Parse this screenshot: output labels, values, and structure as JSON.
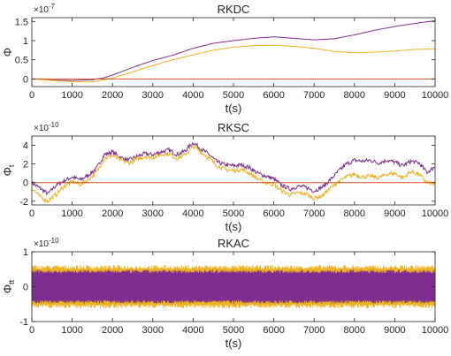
{
  "chart_data": [
    {
      "type": "line",
      "title": "RKDC",
      "xlabel": "t(s)",
      "ylabel": "Φ",
      "exponent_base": "×10",
      "exponent_power": "-7",
      "xlim": [
        0,
        10000
      ],
      "ylim": [
        -0.2,
        1.6
      ],
      "xticks": [
        0,
        1000,
        2000,
        3000,
        4000,
        5000,
        6000,
        7000,
        8000,
        9000,
        10000
      ],
      "yticks": [
        0,
        0.5,
        1,
        1.5
      ],
      "ytick_labels": [
        "0",
        "0.5",
        "1",
        "1.5"
      ],
      "grid": false,
      "colors": [
        "#7e2f8e",
        "#edb120",
        "#d95319"
      ],
      "series": [
        {
          "x": [
            0,
            500,
            1000,
            1500,
            1800,
            2000,
            2500,
            3000,
            3500,
            4000,
            4500,
            5000,
            5500,
            6000,
            6500,
            7000,
            7500,
            8000,
            8500,
            9000,
            9500,
            10000
          ],
          "values": [
            0.0,
            -0.03,
            -0.04,
            -0.02,
            0.03,
            0.1,
            0.3,
            0.48,
            0.62,
            0.8,
            0.93,
            1.0,
            1.06,
            1.1,
            1.06,
            1.02,
            1.05,
            1.15,
            1.27,
            1.37,
            1.45,
            1.52
          ]
        },
        {
          "x": [
            0,
            500,
            1000,
            1500,
            2000,
            2500,
            3000,
            3500,
            4000,
            4500,
            5000,
            5500,
            6000,
            6500,
            7000,
            7500,
            8000,
            8500,
            9000,
            9500,
            10000
          ],
          "values": [
            0.0,
            -0.04,
            -0.07,
            -0.08,
            0.02,
            0.18,
            0.35,
            0.5,
            0.63,
            0.75,
            0.83,
            0.87,
            0.88,
            0.85,
            0.8,
            0.72,
            0.68,
            0.7,
            0.73,
            0.77,
            0.78
          ]
        },
        {
          "x": [
            0,
            10000
          ],
          "values": [
            0.0,
            0.0
          ]
        }
      ]
    },
    {
      "type": "line",
      "title": "RKSC",
      "xlabel": "t(s)",
      "ylabel": "Φ",
      "ylabel_sub": "t",
      "exponent_base": "×10",
      "exponent_power": "-10",
      "xlim": [
        0,
        10000
      ],
      "ylim": [
        -2.4,
        5
      ],
      "xticks": [
        0,
        1000,
        2000,
        3000,
        4000,
        5000,
        6000,
        7000,
        8000,
        9000,
        10000
      ],
      "yticks": [
        -2,
        0,
        2,
        4
      ],
      "ytick_labels": [
        "-2",
        "0",
        "2",
        "4"
      ],
      "grid": false,
      "colors": [
        "#7e2f8e",
        "#edb120",
        "#d95319"
      ],
      "series": [
        {
          "x": [
            0,
            200,
            400,
            600,
            800,
            1000,
            1200,
            1400,
            1600,
            1800,
            2000,
            2200,
            2400,
            2600,
            2800,
            3000,
            3200,
            3400,
            3600,
            3800,
            4000,
            4200,
            4400,
            4600,
            4800,
            5000,
            5200,
            5400,
            5600,
            5800,
            6000,
            6200,
            6400,
            6600,
            6800,
            7000,
            7200,
            7400,
            7600,
            7800,
            8000,
            8200,
            8400,
            8600,
            8800,
            9000,
            9200,
            9400,
            9600,
            9800,
            10000
          ],
          "values": [
            0.0,
            -0.6,
            -1.2,
            -0.3,
            0.2,
            0.6,
            0.3,
            0.8,
            1.5,
            3.0,
            3.3,
            2.7,
            2.4,
            2.8,
            3.1,
            3.0,
            3.3,
            3.5,
            3.0,
            3.4,
            4.3,
            3.6,
            3.0,
            2.2,
            1.9,
            1.8,
            1.9,
            1.6,
            1.0,
            0.7,
            0.4,
            -0.3,
            -0.7,
            -0.4,
            -0.5,
            -0.9,
            -0.5,
            0.3,
            1.2,
            2.0,
            2.4,
            2.3,
            2.4,
            2.1,
            2.4,
            2.2,
            1.8,
            2.3,
            2.1,
            1.1,
            1.7
          ]
        },
        {
          "x": [
            0,
            200,
            400,
            600,
            800,
            1000,
            1200,
            1400,
            1600,
            1800,
            2000,
            2200,
            2400,
            2600,
            2800,
            3000,
            3200,
            3400,
            3600,
            3800,
            4000,
            4200,
            4400,
            4600,
            4800,
            5000,
            5200,
            5400,
            5600,
            5800,
            6000,
            6200,
            6400,
            6600,
            6800,
            7000,
            7200,
            7400,
            7600,
            7800,
            8000,
            8200,
            8400,
            8600,
            8800,
            9000,
            9200,
            9400,
            9600,
            9800,
            10000
          ],
          "values": [
            -0.6,
            -1.5,
            -2.0,
            -1.3,
            -0.4,
            0.1,
            -0.2,
            0.3,
            1.1,
            2.6,
            2.9,
            2.4,
            2.1,
            2.5,
            2.8,
            2.7,
            3.0,
            3.1,
            2.6,
            3.0,
            3.9,
            3.3,
            2.6,
            1.8,
            1.4,
            1.3,
            1.4,
            1.0,
            0.4,
            0.0,
            -0.2,
            -0.9,
            -1.3,
            -1.1,
            -1.2,
            -1.7,
            -1.4,
            -0.6,
            0.1,
            0.6,
            0.9,
            0.6,
            0.7,
            0.5,
            0.9,
            1.0,
            0.5,
            1.2,
            0.9,
            0.0,
            -0.2
          ]
        },
        {
          "x": [
            0,
            10000
          ],
          "values": [
            0.0,
            0.0
          ]
        }
      ]
    },
    {
      "type": "line",
      "title": "RKAC",
      "xlabel": "t(s)",
      "ylabel": "Φ",
      "ylabel_sub": "tt",
      "exponent_base": "×10",
      "exponent_power": "-10",
      "xlim": [
        0,
        10000
      ],
      "ylim": [
        -1,
        1
      ],
      "xticks": [
        0,
        1000,
        2000,
        3000,
        4000,
        5000,
        6000,
        7000,
        8000,
        9000,
        10000
      ],
      "yticks": [
        -1,
        0,
        1
      ],
      "ytick_labels": [
        "-1",
        "0",
        "1"
      ],
      "grid": false,
      "colors": [
        "#edb120",
        "#7e2f8e"
      ],
      "series": [
        {
          "x": [
            0,
            10000
          ],
          "values": [
            0,
            0
          ],
          "band": [
            -0.62,
            0.62
          ]
        },
        {
          "x": [
            0,
            10000
          ],
          "values": [
            0,
            0
          ],
          "band": [
            -0.48,
            0.48
          ]
        }
      ]
    }
  ]
}
